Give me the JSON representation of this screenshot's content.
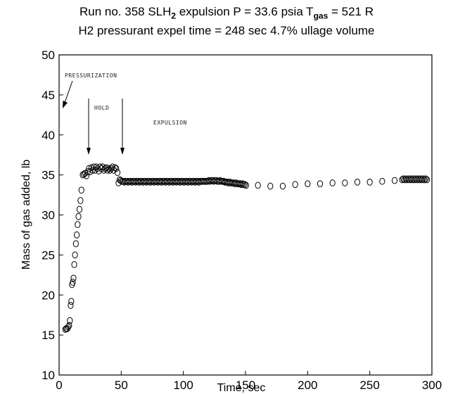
{
  "chart_data": {
    "type": "scatter",
    "title_line1": {
      "pre": "Run no. 358   SLH",
      "sub1": "2",
      "mid": " expulsion   P = 33.6 psia   T",
      "sub2": "gas",
      "post": " = 521 R"
    },
    "title_line2": "H2 pressurant   expel time = 248 sec   4.7% ullage volume",
    "xlabel": "Time, sec",
    "ylabel": "Mass of gas added, lb",
    "xlim": [
      0,
      300
    ],
    "ylim": [
      10,
      50
    ],
    "x_ticks": [
      0,
      50,
      100,
      150,
      200,
      250,
      300
    ],
    "y_ticks": [
      10,
      15,
      20,
      25,
      30,
      35,
      40,
      45,
      50
    ],
    "grid": false,
    "marker": "open-circle",
    "annotations": {
      "pressurization": "PRESSURIZATION",
      "hold": "HOLD",
      "expulsion": "EXPULSION"
    },
    "series": [
      {
        "points": [
          [
            5.0,
            15.7
          ],
          [
            5.8,
            15.8
          ],
          [
            6.6,
            15.8
          ],
          [
            7.4,
            16.0
          ],
          [
            8.1,
            16.2
          ],
          [
            8.7,
            16.8
          ],
          [
            9.3,
            18.7
          ],
          [
            9.8,
            19.2
          ],
          [
            10.4,
            21.3
          ],
          [
            11.0,
            21.6
          ],
          [
            11.6,
            22.1
          ],
          [
            12.2,
            23.8
          ],
          [
            12.8,
            25.0
          ],
          [
            13.5,
            26.4
          ],
          [
            14.2,
            27.5
          ],
          [
            14.9,
            28.8
          ],
          [
            15.6,
            29.8
          ],
          [
            16.4,
            30.7
          ],
          [
            17.2,
            31.8
          ],
          [
            18.0,
            33.1
          ],
          [
            19.0,
            35.0
          ],
          [
            20.0,
            35.1
          ],
          [
            21.0,
            35.2
          ],
          [
            22.0,
            34.9
          ],
          [
            23.0,
            35.4
          ],
          [
            24.0,
            35.8
          ],
          [
            25.0,
            35.4
          ],
          [
            26.0,
            35.9
          ],
          [
            27.0,
            35.6
          ],
          [
            28.0,
            36.0
          ],
          [
            29.0,
            35.6
          ],
          [
            30.0,
            36.0
          ],
          [
            31.0,
            35.8
          ],
          [
            32.0,
            35.5
          ],
          [
            33.0,
            36.0
          ],
          [
            34.0,
            35.8
          ],
          [
            35.0,
            36.0
          ],
          [
            36.0,
            35.6
          ],
          [
            37.0,
            35.8
          ],
          [
            38.0,
            35.9
          ],
          [
            39.0,
            35.6
          ],
          [
            40.0,
            35.8
          ],
          [
            41.0,
            35.6
          ],
          [
            42.0,
            35.8
          ],
          [
            43.0,
            36.0
          ],
          [
            44.0,
            35.6
          ],
          [
            45.0,
            35.9
          ],
          [
            46.0,
            35.8
          ],
          [
            47.0,
            35.3
          ],
          [
            47.8,
            34.0
          ],
          [
            48.7,
            34.4
          ],
          [
            49.6,
            34.3
          ],
          [
            50.5,
            34.2
          ],
          [
            51.5,
            34.2
          ],
          [
            52.5,
            34.1
          ],
          [
            53.5,
            34.2
          ],
          [
            54.5,
            34.2
          ],
          [
            55.5,
            34.1
          ],
          [
            56.5,
            34.2
          ],
          [
            57.5,
            34.2
          ],
          [
            58.5,
            34.1
          ],
          [
            59.5,
            34.2
          ],
          [
            60.5,
            34.2
          ],
          [
            61.5,
            34.1
          ],
          [
            62.5,
            34.2
          ],
          [
            63.5,
            34.2
          ],
          [
            64.5,
            34.1
          ],
          [
            65.5,
            34.2
          ],
          [
            66.5,
            34.2
          ],
          [
            67.5,
            34.1
          ],
          [
            68.5,
            34.2
          ],
          [
            69.5,
            34.2
          ],
          [
            70.5,
            34.1
          ],
          [
            71.5,
            34.2
          ],
          [
            72.5,
            34.2
          ],
          [
            73.5,
            34.1
          ],
          [
            74.5,
            34.2
          ],
          [
            75.5,
            34.2
          ],
          [
            76.5,
            34.1
          ],
          [
            77.5,
            34.2
          ],
          [
            78.5,
            34.2
          ],
          [
            79.5,
            34.1
          ],
          [
            80.5,
            34.2
          ],
          [
            81.5,
            34.2
          ],
          [
            82.5,
            34.1
          ],
          [
            83.5,
            34.2
          ],
          [
            84.5,
            34.2
          ],
          [
            85.5,
            34.1
          ],
          [
            86.5,
            34.2
          ],
          [
            87.5,
            34.2
          ],
          [
            88.5,
            34.1
          ],
          [
            89.5,
            34.2
          ],
          [
            90.5,
            34.2
          ],
          [
            91.5,
            34.1
          ],
          [
            92.5,
            34.2
          ],
          [
            93.5,
            34.2
          ],
          [
            94.5,
            34.1
          ],
          [
            95.5,
            34.2
          ],
          [
            96.5,
            34.2
          ],
          [
            97.5,
            34.1
          ],
          [
            98.5,
            34.2
          ],
          [
            99.5,
            34.2
          ],
          [
            100.5,
            34.1
          ],
          [
            101.5,
            34.2
          ],
          [
            102.5,
            34.2
          ],
          [
            103.5,
            34.1
          ],
          [
            104.5,
            34.2
          ],
          [
            105.5,
            34.2
          ],
          [
            106.5,
            34.1
          ],
          [
            107.5,
            34.2
          ],
          [
            108.5,
            34.2
          ],
          [
            109.5,
            34.1
          ],
          [
            110.5,
            34.2
          ],
          [
            111.5,
            34.2
          ],
          [
            112.5,
            34.1
          ],
          [
            113.5,
            34.2
          ],
          [
            114.5,
            34.2
          ],
          [
            115.5,
            34.2
          ],
          [
            116.5,
            34.2
          ],
          [
            117.5,
            34.2
          ],
          [
            118.5,
            34.2
          ],
          [
            119.5,
            34.2
          ],
          [
            120.5,
            34.3
          ],
          [
            121.5,
            34.2
          ],
          [
            122.5,
            34.3
          ],
          [
            123.5,
            34.3
          ],
          [
            124.5,
            34.2
          ],
          [
            125.5,
            34.3
          ],
          [
            126.5,
            34.3
          ],
          [
            127.5,
            34.2
          ],
          [
            128.5,
            34.2
          ],
          [
            129.5,
            34.3
          ],
          [
            130.5,
            34.2
          ],
          [
            131.5,
            34.2
          ],
          [
            132.5,
            34.2
          ],
          [
            133.5,
            34.1
          ],
          [
            134.5,
            34.1
          ],
          [
            135.5,
            34.1
          ],
          [
            136.5,
            34.0
          ],
          [
            137.5,
            34.1
          ],
          [
            138.5,
            34.0
          ],
          [
            139.5,
            34.0
          ],
          [
            140.5,
            34.0
          ],
          [
            141.5,
            33.9
          ],
          [
            142.5,
            34.0
          ],
          [
            143.5,
            33.9
          ],
          [
            144.5,
            33.9
          ],
          [
            145.5,
            33.9
          ],
          [
            146.5,
            33.8
          ],
          [
            147.5,
            33.9
          ],
          [
            148.5,
            33.8
          ],
          [
            149.5,
            33.8
          ],
          [
            150.5,
            33.7
          ],
          [
            160.0,
            33.7
          ],
          [
            170.0,
            33.6
          ],
          [
            180.0,
            33.6
          ],
          [
            190.0,
            33.8
          ],
          [
            200.0,
            33.9
          ],
          [
            210.0,
            33.9
          ],
          [
            220.0,
            34.0
          ],
          [
            230.0,
            34.0
          ],
          [
            240.0,
            34.1
          ],
          [
            250.0,
            34.1
          ],
          [
            260.0,
            34.2
          ],
          [
            270.0,
            34.3
          ],
          [
            276.0,
            34.4
          ],
          [
            277.0,
            34.5
          ],
          [
            278.0,
            34.4
          ],
          [
            279.0,
            34.5
          ],
          [
            280.0,
            34.4
          ],
          [
            281.0,
            34.5
          ],
          [
            282.0,
            34.4
          ],
          [
            283.0,
            34.5
          ],
          [
            284.0,
            34.4
          ],
          [
            285.0,
            34.5
          ],
          [
            286.0,
            34.4
          ],
          [
            287.0,
            34.5
          ],
          [
            288.0,
            34.4
          ],
          [
            289.0,
            34.5
          ],
          [
            290.0,
            34.4
          ],
          [
            291.0,
            34.5
          ],
          [
            292.0,
            34.4
          ],
          [
            293.0,
            34.5
          ],
          [
            294.0,
            34.4
          ],
          [
            295.0,
            34.5
          ],
          [
            296.0,
            34.4
          ]
        ]
      }
    ]
  }
}
